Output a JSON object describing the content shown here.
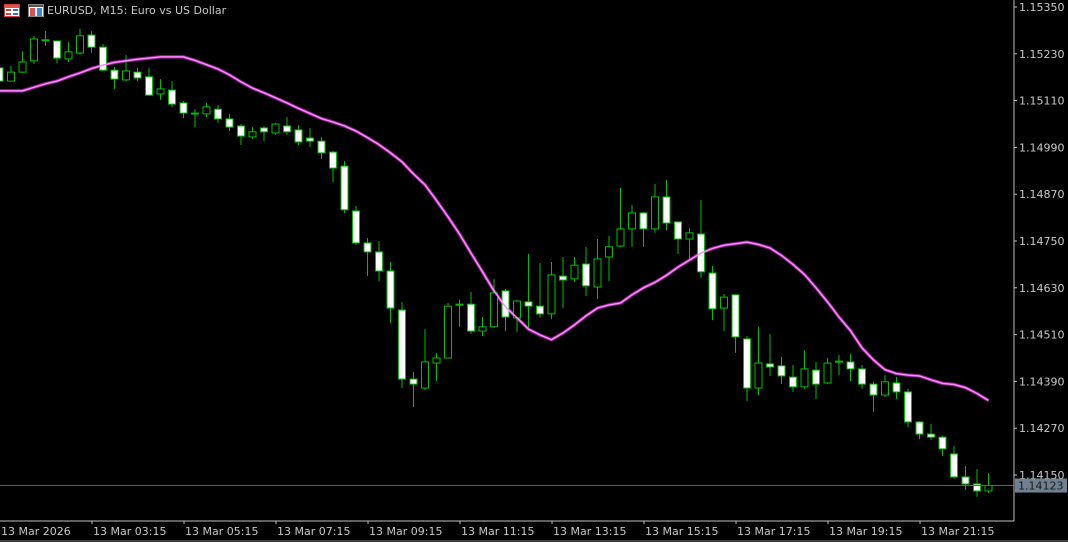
{
  "header": {
    "title": "EURUSD, M15:  Euro vs US Dollar",
    "icons": [
      "symbol-list-icon",
      "market-depth-icon"
    ]
  },
  "colors": {
    "background": "#000000",
    "candle_outline": "#00c000",
    "bull_fill": "#000000",
    "bear_fill": "#ffffff",
    "moving_average": "#ff3cff",
    "axis": "#c0c0c0",
    "current_price_line": "#5a6470",
    "current_price_label_bg": "#708090"
  },
  "chart_data": {
    "type": "candlestick",
    "symbol": "EURUSD",
    "timeframe": "M15",
    "y_axis": {
      "ticks": [
        "1.15350",
        "1.15230",
        "1.15110",
        "1.14990",
        "1.14870",
        "1.14750",
        "1.14630",
        "1.14510",
        "1.14390",
        "1.14270",
        "1.14150"
      ],
      "range": [
        1.1411,
        1.1537
      ],
      "position": "right"
    },
    "x_axis": {
      "ticks": [
        "13 Mar 2026",
        "13 Mar 03:15",
        "13 Mar 05:15",
        "13 Mar 07:15",
        "13 Mar 09:15",
        "13 Mar 11:15",
        "13 Mar 13:15",
        "13 Mar 15:15",
        "13 Mar 17:15",
        "13 Mar 19:15",
        "13 Mar 21:15"
      ],
      "bars_per_tick": 8
    },
    "current_price": "1.14123",
    "ohlc_fields": [
      "open",
      "high",
      "low",
      "close"
    ],
    "candles": [
      [
        1.15194,
        1.15199,
        1.15155,
        1.1516
      ],
      [
        1.1516,
        1.15199,
        1.1516,
        1.15183
      ],
      [
        1.15183,
        1.15237,
        1.15181,
        1.15209
      ],
      [
        1.15212,
        1.15276,
        1.15204,
        1.15268
      ],
      [
        1.15265,
        1.15288,
        1.1525,
        1.15266
      ],
      [
        1.15263,
        1.15263,
        1.15206,
        1.15219
      ],
      [
        1.15217,
        1.1526,
        1.15209,
        1.15235
      ],
      [
        1.15232,
        1.15294,
        1.15227,
        1.15276
      ],
      [
        1.15278,
        1.15288,
        1.15232,
        1.15247
      ],
      [
        1.15247,
        1.15255,
        1.15186,
        1.15188
      ],
      [
        1.15188,
        1.15196,
        1.1514,
        1.15165
      ],
      [
        1.15163,
        1.15227,
        1.1516,
        1.15186
      ],
      [
        1.15183,
        1.15194,
        1.1516,
        1.15168
      ],
      [
        1.15171,
        1.15194,
        1.15122,
        1.15124
      ],
      [
        1.15127,
        1.15165,
        1.15112,
        1.1514
      ],
      [
        1.15137,
        1.1516,
        1.15094,
        1.15101
      ],
      [
        1.15104,
        1.15109,
        1.15065,
        1.15078
      ],
      [
        1.15078,
        1.15088,
        1.15042,
        1.15076
      ],
      [
        1.15076,
        1.15104,
        1.15068,
        1.15094
      ],
      [
        1.15088,
        1.15099,
        1.15053,
        1.15063
      ],
      [
        1.15063,
        1.15076,
        1.15032,
        1.15042
      ],
      [
        1.15045,
        1.1505,
        1.14996,
        1.15019
      ],
      [
        1.15017,
        1.15042,
        1.15012,
        1.1503
      ],
      [
        1.1504,
        1.15045,
        1.15006,
        1.1503
      ],
      [
        1.15027,
        1.15053,
        1.15022,
        1.1505
      ],
      [
        1.15045,
        1.15068,
        1.15022,
        1.1503
      ],
      [
        1.15035,
        1.15047,
        1.14996,
        1.15004
      ],
      [
        1.15014,
        1.1504,
        1.14991,
        1.15006
      ],
      [
        1.15006,
        1.15017,
        1.1496,
        1.14976
      ],
      [
        1.14978,
        1.14981,
        1.14901,
        1.14937
      ],
      [
        1.14942,
        1.14955,
        1.14822,
        1.1483
      ],
      [
        1.14827,
        1.1484,
        1.1474,
        1.14745
      ],
      [
        1.14745,
        1.14758,
        1.1466,
        1.14722
      ],
      [
        1.14722,
        1.1475,
        1.14647,
        1.14673
      ],
      [
        1.14673,
        1.14696,
        1.1454,
        1.14578
      ],
      [
        1.14573,
        1.14594,
        1.14373,
        1.14396
      ],
      [
        1.14396,
        1.14414,
        1.14324,
        1.14383
      ],
      [
        1.14373,
        1.14524,
        1.14368,
        1.1444
      ],
      [
        1.14437,
        1.14463,
        1.14391,
        1.1445
      ],
      [
        1.1445,
        1.14591,
        1.1445,
        1.14583
      ],
      [
        1.14586,
        1.14599,
        1.1453,
        1.14588
      ],
      [
        1.14588,
        1.14619,
        1.14512,
        1.14519
      ],
      [
        1.14519,
        1.14555,
        1.14506,
        1.1453
      ],
      [
        1.1453,
        1.14653,
        1.14527,
        1.14617
      ],
      [
        1.14622,
        1.14627,
        1.14519,
        1.14555
      ],
      [
        1.14553,
        1.14599,
        1.14517,
        1.14596
      ],
      [
        1.14594,
        1.14717,
        1.14527,
        1.14583
      ],
      [
        1.14583,
        1.14694,
        1.14553,
        1.14563
      ],
      [
        1.14563,
        1.14696,
        1.1455,
        1.14663
      ],
      [
        1.1466,
        1.14709,
        1.14578,
        1.1465
      ],
      [
        1.14653,
        1.14709,
        1.14645,
        1.14688
      ],
      [
        1.14691,
        1.14735,
        1.14609,
        1.14635
      ],
      [
        1.14632,
        1.14755,
        1.14601,
        1.14704
      ],
      [
        1.14709,
        1.14763,
        1.14647,
        1.14735
      ],
      [
        1.14737,
        1.14886,
        1.14735,
        1.14781
      ],
      [
        1.14781,
        1.14842,
        1.14735,
        1.14822
      ],
      [
        1.14822,
        1.14824,
        1.14735,
        1.14781
      ],
      [
        1.14781,
        1.14896,
        1.14771,
        1.14863
      ],
      [
        1.14863,
        1.14906,
        1.14778,
        1.14796
      ],
      [
        1.14799,
        1.14799,
        1.14717,
        1.14755
      ],
      [
        1.14755,
        1.14783,
        1.14701,
        1.14771
      ],
      [
        1.14768,
        1.14855,
        1.14655,
        1.14671
      ],
      [
        1.14668,
        1.14686,
        1.14547,
        1.14576
      ],
      [
        1.14578,
        1.14614,
        1.14519,
        1.14606
      ],
      [
        1.14612,
        1.14612,
        1.14463,
        1.14504
      ],
      [
        1.14499,
        1.14506,
        1.1434,
        1.14373
      ],
      [
        1.14373,
        1.1453,
        1.14355,
        1.14437
      ],
      [
        1.14435,
        1.14512,
        1.14404,
        1.14427
      ],
      [
        1.1443,
        1.14453,
        1.14383,
        1.14404
      ],
      [
        1.14401,
        1.14432,
        1.14363,
        1.14376
      ],
      [
        1.14376,
        1.1447,
        1.14371,
        1.14422
      ],
      [
        1.14419,
        1.1444,
        1.14345,
        1.14383
      ],
      [
        1.14386,
        1.1445,
        1.14383,
        1.14437
      ],
      [
        1.1444,
        1.14458,
        1.14406,
        1.14442
      ],
      [
        1.1444,
        1.1446,
        1.14391,
        1.14422
      ],
      [
        1.14422,
        1.14432,
        1.14371,
        1.14383
      ],
      [
        1.14383,
        1.14389,
        1.14312,
        1.14355
      ],
      [
        1.14355,
        1.14406,
        1.1435,
        1.14389
      ],
      [
        1.14386,
        1.14401,
        1.14345,
        1.14363
      ],
      [
        1.14363,
        1.14371,
        1.14273,
        1.14286
      ],
      [
        1.14286,
        1.14288,
        1.14242,
        1.14255
      ],
      [
        1.14255,
        1.14281,
        1.1424,
        1.14247
      ],
      [
        1.14247,
        1.1425,
        1.14199,
        1.14217
      ],
      [
        1.14204,
        1.14224,
        1.1414,
        1.14145
      ],
      [
        1.14145,
        1.14173,
        1.14112,
        1.14127
      ],
      [
        1.14127,
        1.14165,
        1.14094,
        1.14109
      ],
      [
        1.14109,
        1.14155,
        1.14104,
        1.14123
      ]
    ],
    "moving_average": [
      1.15135,
      1.15135,
      1.15135,
      1.15144,
      1.15153,
      1.1516,
      1.15171,
      1.15181,
      1.15192,
      1.15201,
      1.15208,
      1.15212,
      1.15216,
      1.15219,
      1.15222,
      1.15222,
      1.15222,
      1.15213,
      1.15202,
      1.15191,
      1.15176,
      1.15158,
      1.15142,
      1.1513,
      1.15117,
      1.15104,
      1.1509,
      1.15077,
      1.15064,
      1.15055,
      1.15045,
      1.15032,
      1.15015,
      1.14997,
      1.14976,
      1.14953,
      1.14922,
      1.14894,
      1.14854,
      1.14812,
      1.14768,
      1.14719,
      1.14671,
      1.14622,
      1.14581,
      1.14553,
      1.14524,
      1.14509,
      1.14497,
      1.14514,
      1.14535,
      1.14558,
      1.14578,
      1.14586,
      1.14591,
      1.14612,
      1.1463,
      1.14644,
      1.14662,
      1.14683,
      1.14701,
      1.14719,
      1.14731,
      1.14739,
      1.14743,
      1.14747,
      1.14741,
      1.14732,
      1.14713,
      1.1469,
      1.14664,
      1.1463,
      1.14594,
      1.14555,
      1.1452,
      1.14476,
      1.14445,
      1.1442,
      1.1441,
      1.14406,
      1.14404,
      1.14394,
      1.14385,
      1.14382,
      1.14374,
      1.14359,
      1.14341
    ],
    "grid": false
  }
}
